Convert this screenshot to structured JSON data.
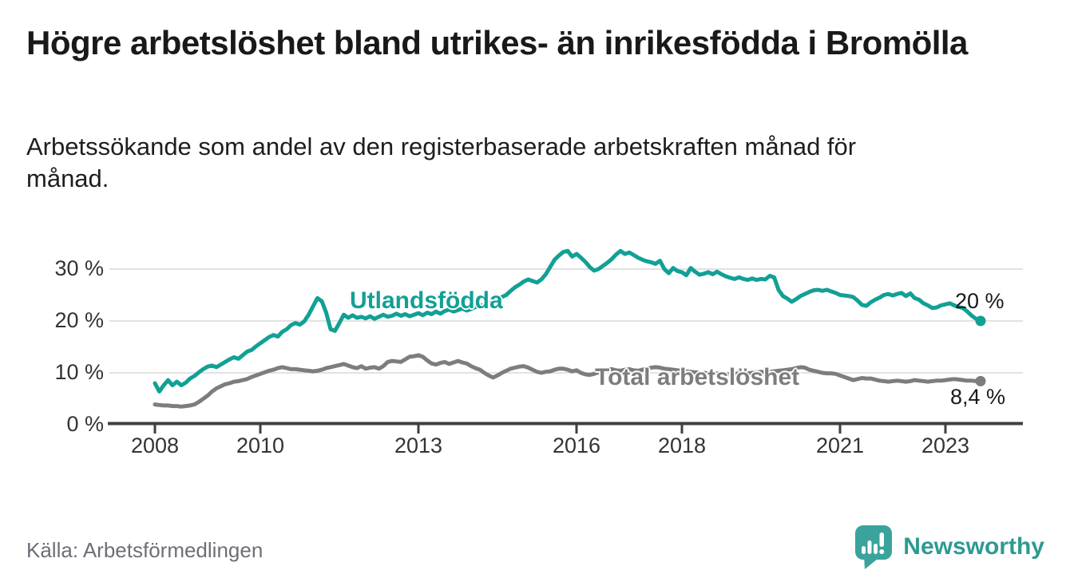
{
  "header": {
    "title": "Högre arbetslöshet bland utrikes- än inrikesfödda i Bromölla",
    "subtitle": "Arbetssökande som andel av den registerbaserade arbetskraften månad för månad."
  },
  "footer": {
    "source": "Källa: Arbetsförmedlingen",
    "brand_name": "Newsworthy",
    "brand_icon": "newsworthy-speech-bubble-bar-chart-icon"
  },
  "colors": {
    "foreign_born_line": "#12a095",
    "total_line": "#7d7d80",
    "gridline": "#d9d9d9",
    "axis": "#3f3f3f",
    "annotation_text": "#1a1a1a",
    "brand_teal": "#2d9a93",
    "brand_icon_teal": "#3aa39c"
  },
  "chart_data": {
    "type": "line",
    "title": "Högre arbetslöshet bland utrikes- än inrikesfödda i Bromölla",
    "subtitle": "Arbetssökande som andel av den registerbaserade arbetskraften månad för månad.",
    "frequency": "monthly",
    "x_start": "2008-01",
    "x_end": "2023-09",
    "xlabel": "",
    "ylabel": "",
    "ylim": [
      0,
      34
    ],
    "grid": "horizontal",
    "legend_position": "inline-labels",
    "y_ticks": [
      0,
      10,
      20,
      30
    ],
    "y_tick_labels": [
      "0 %",
      "10 %",
      "20 %",
      "30 %"
    ],
    "x_tick_years": [
      2008,
      2010,
      2013,
      2016,
      2018,
      2021,
      2023
    ],
    "x_tick_labels": [
      "2008",
      "2010",
      "2013",
      "2016",
      "2018",
      "2021",
      "2023"
    ],
    "series": [
      {
        "name": "Utlandsfödda",
        "color": "#12a095",
        "end_label": "20 %",
        "end_value": 20.0,
        "values": [
          8.0,
          6.4,
          7.6,
          8.6,
          7.6,
          8.3,
          7.6,
          8.1,
          8.9,
          9.4,
          10.1,
          10.7,
          11.2,
          11.4,
          11.1,
          11.6,
          12.1,
          12.6,
          13.0,
          12.7,
          13.4,
          14.1,
          14.4,
          15.1,
          15.7,
          16.3,
          16.9,
          17.3,
          17.0,
          17.9,
          18.4,
          19.2,
          19.6,
          19.3,
          19.9,
          21.2,
          22.8,
          24.4,
          23.8,
          21.6,
          18.4,
          18.1,
          19.6,
          21.2,
          20.6,
          21.1,
          20.6,
          20.8,
          20.5,
          20.9,
          20.4,
          20.8,
          21.2,
          20.8,
          21.0,
          21.4,
          21.0,
          21.3,
          20.9,
          21.2,
          21.5,
          21.1,
          21.6,
          21.3,
          21.8,
          21.4,
          21.9,
          22.2,
          21.8,
          22.1,
          22.4,
          22.0,
          22.3,
          22.7,
          23.1,
          22.8,
          23.3,
          23.7,
          24.2,
          24.6,
          25.0,
          25.8,
          26.5,
          27.0,
          27.6,
          28.0,
          27.7,
          27.4,
          28.0,
          29.0,
          30.4,
          31.8,
          32.6,
          33.3,
          33.5,
          32.4,
          32.9,
          32.2,
          31.4,
          30.4,
          29.7,
          30.0,
          30.6,
          31.2,
          31.9,
          32.8,
          33.5,
          32.9,
          33.2,
          32.7,
          32.2,
          31.8,
          31.5,
          31.3,
          31.0,
          31.6,
          30.0,
          29.2,
          30.2,
          29.6,
          29.4,
          28.8,
          30.2,
          29.5,
          28.9,
          29.1,
          29.4,
          29.0,
          29.5,
          29.0,
          28.6,
          28.3,
          28.1,
          28.4,
          28.1,
          27.9,
          28.2,
          27.9,
          28.1,
          28.0,
          28.7,
          28.4,
          26.0,
          24.8,
          24.3,
          23.7,
          24.2,
          24.8,
          25.2,
          25.6,
          25.9,
          26.0,
          25.8,
          26.0,
          25.7,
          25.4,
          25.0,
          24.9,
          24.8,
          24.6,
          23.9,
          23.1,
          22.9,
          23.6,
          24.1,
          24.5,
          25.0,
          25.2,
          24.9,
          25.2,
          25.4,
          24.8,
          25.3,
          24.4,
          24.1,
          23.4,
          23.0,
          22.5,
          22.6,
          23.0,
          23.2,
          23.4,
          23.0,
          22.7,
          22.5,
          21.8,
          21.0,
          20.4,
          20.0
        ]
      },
      {
        "name": "Total arbetslöshet",
        "color": "#7d7d80",
        "end_label": "8,4 %",
        "end_value": 8.4,
        "values": [
          3.9,
          3.8,
          3.7,
          3.7,
          3.6,
          3.6,
          3.5,
          3.6,
          3.7,
          3.9,
          4.4,
          5.0,
          5.6,
          6.4,
          7.0,
          7.4,
          7.8,
          8.0,
          8.3,
          8.4,
          8.6,
          8.8,
          9.2,
          9.5,
          9.8,
          10.1,
          10.4,
          10.6,
          10.9,
          11.1,
          10.9,
          10.7,
          10.7,
          10.6,
          10.5,
          10.4,
          10.3,
          10.4,
          10.6,
          10.9,
          11.1,
          11.3,
          11.5,
          11.7,
          11.4,
          11.1,
          10.9,
          11.3,
          10.8,
          11.0,
          11.1,
          10.8,
          11.3,
          12.1,
          12.3,
          12.2,
          12.1,
          12.6,
          13.1,
          13.2,
          13.4,
          13.1,
          12.4,
          11.8,
          11.6,
          11.9,
          12.1,
          11.7,
          12.0,
          12.3,
          12.0,
          11.8,
          11.3,
          10.9,
          10.6,
          10.0,
          9.5,
          9.1,
          9.5,
          10.0,
          10.4,
          10.8,
          11.0,
          11.2,
          11.3,
          11.0,
          10.6,
          10.2,
          10.0,
          10.2,
          10.3,
          10.6,
          10.8,
          10.8,
          10.6,
          10.3,
          10.5,
          10.0,
          9.7,
          9.6,
          9.8,
          10.1,
          10.4,
          10.6,
          10.7,
          10.5,
          10.4,
          10.6,
          10.7,
          10.5,
          10.4,
          10.6,
          10.8,
          11.0,
          11.1,
          11.0,
          10.8,
          10.7,
          10.6,
          10.5,
          10.4,
          10.3,
          10.2,
          10.1,
          10.0,
          10.0,
          9.9,
          9.8,
          9.9,
          9.8,
          9.7,
          9.7,
          9.8,
          9.9,
          9.8,
          9.9,
          10.0,
          10.1,
          10.2,
          10.1,
          10.2,
          10.3,
          10.4,
          10.5,
          10.6,
          10.7,
          10.9,
          11.1,
          11.0,
          10.6,
          10.4,
          10.2,
          10.0,
          9.9,
          9.9,
          9.8,
          9.5,
          9.2,
          8.9,
          8.6,
          8.8,
          9.0,
          8.9,
          8.9,
          8.7,
          8.5,
          8.4,
          8.3,
          8.4,
          8.5,
          8.4,
          8.3,
          8.4,
          8.6,
          8.5,
          8.4,
          8.3,
          8.4,
          8.5,
          8.5,
          8.6,
          8.7,
          8.8,
          8.7,
          8.6,
          8.5,
          8.5,
          8.4,
          8.4
        ]
      }
    ]
  }
}
